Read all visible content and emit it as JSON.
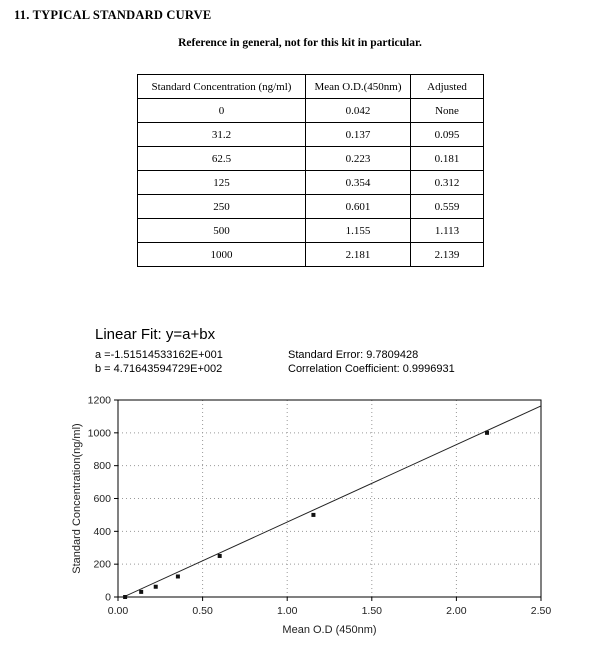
{
  "page": {
    "title": "11. TYPICAL STANDARD CURVE",
    "subtitle": "Reference in general, not for this kit in particular."
  },
  "table": {
    "headers": [
      "Standard Concentration (ng/ml)",
      "Mean O.D.(450nm)",
      "Adjusted"
    ],
    "rows": [
      [
        "0",
        "0.042",
        "None"
      ],
      [
        "31.2",
        "0.137",
        "0.095"
      ],
      [
        "62.5",
        "0.223",
        "0.181"
      ],
      [
        "125",
        "0.354",
        "0.312"
      ],
      [
        "250",
        "0.601",
        "0.559"
      ],
      [
        "500",
        "1.155",
        "1.113"
      ],
      [
        "1000",
        "2.181",
        "2.139"
      ]
    ]
  },
  "fit": {
    "title": "Linear Fit: y=a+bx",
    "a_line": "a =-1.51514533162E+001",
    "b_line": "b = 4.71643594729E+002",
    "std_error_line": "Standard Error: 9.7809428",
    "corr_line": "Correlation Coefficient: 0.9996931"
  },
  "chart_data": {
    "type": "scatter",
    "title": "",
    "xlabel": "Mean O.D (450nm)",
    "ylabel": "Standard Concentration(ng/ml)",
    "xlim": [
      0,
      2.5
    ],
    "ylim": [
      0,
      1200
    ],
    "grid": true,
    "legend": false,
    "x_ticks": [
      0,
      0.5,
      1.0,
      1.5,
      2.0,
      2.5
    ],
    "x_tick_labels": [
      "0.00",
      "0.50",
      "1.00",
      "1.50",
      "2.00",
      "2.50"
    ],
    "y_ticks": [
      0,
      200,
      400,
      600,
      800,
      1000,
      1200
    ],
    "y_tick_labels": [
      "0",
      "200",
      "400",
      "600",
      "800",
      "1000",
      "1200"
    ],
    "points": [
      {
        "x": 0.042,
        "y": 0
      },
      {
        "x": 0.137,
        "y": 31.2
      },
      {
        "x": 0.223,
        "y": 62.5
      },
      {
        "x": 0.354,
        "y": 125
      },
      {
        "x": 0.601,
        "y": 250
      },
      {
        "x": 1.155,
        "y": 500
      },
      {
        "x": 2.181,
        "y": 1000
      }
    ],
    "fit_line": {
      "a": -15.1514533162,
      "b": 471.643594729
    }
  }
}
